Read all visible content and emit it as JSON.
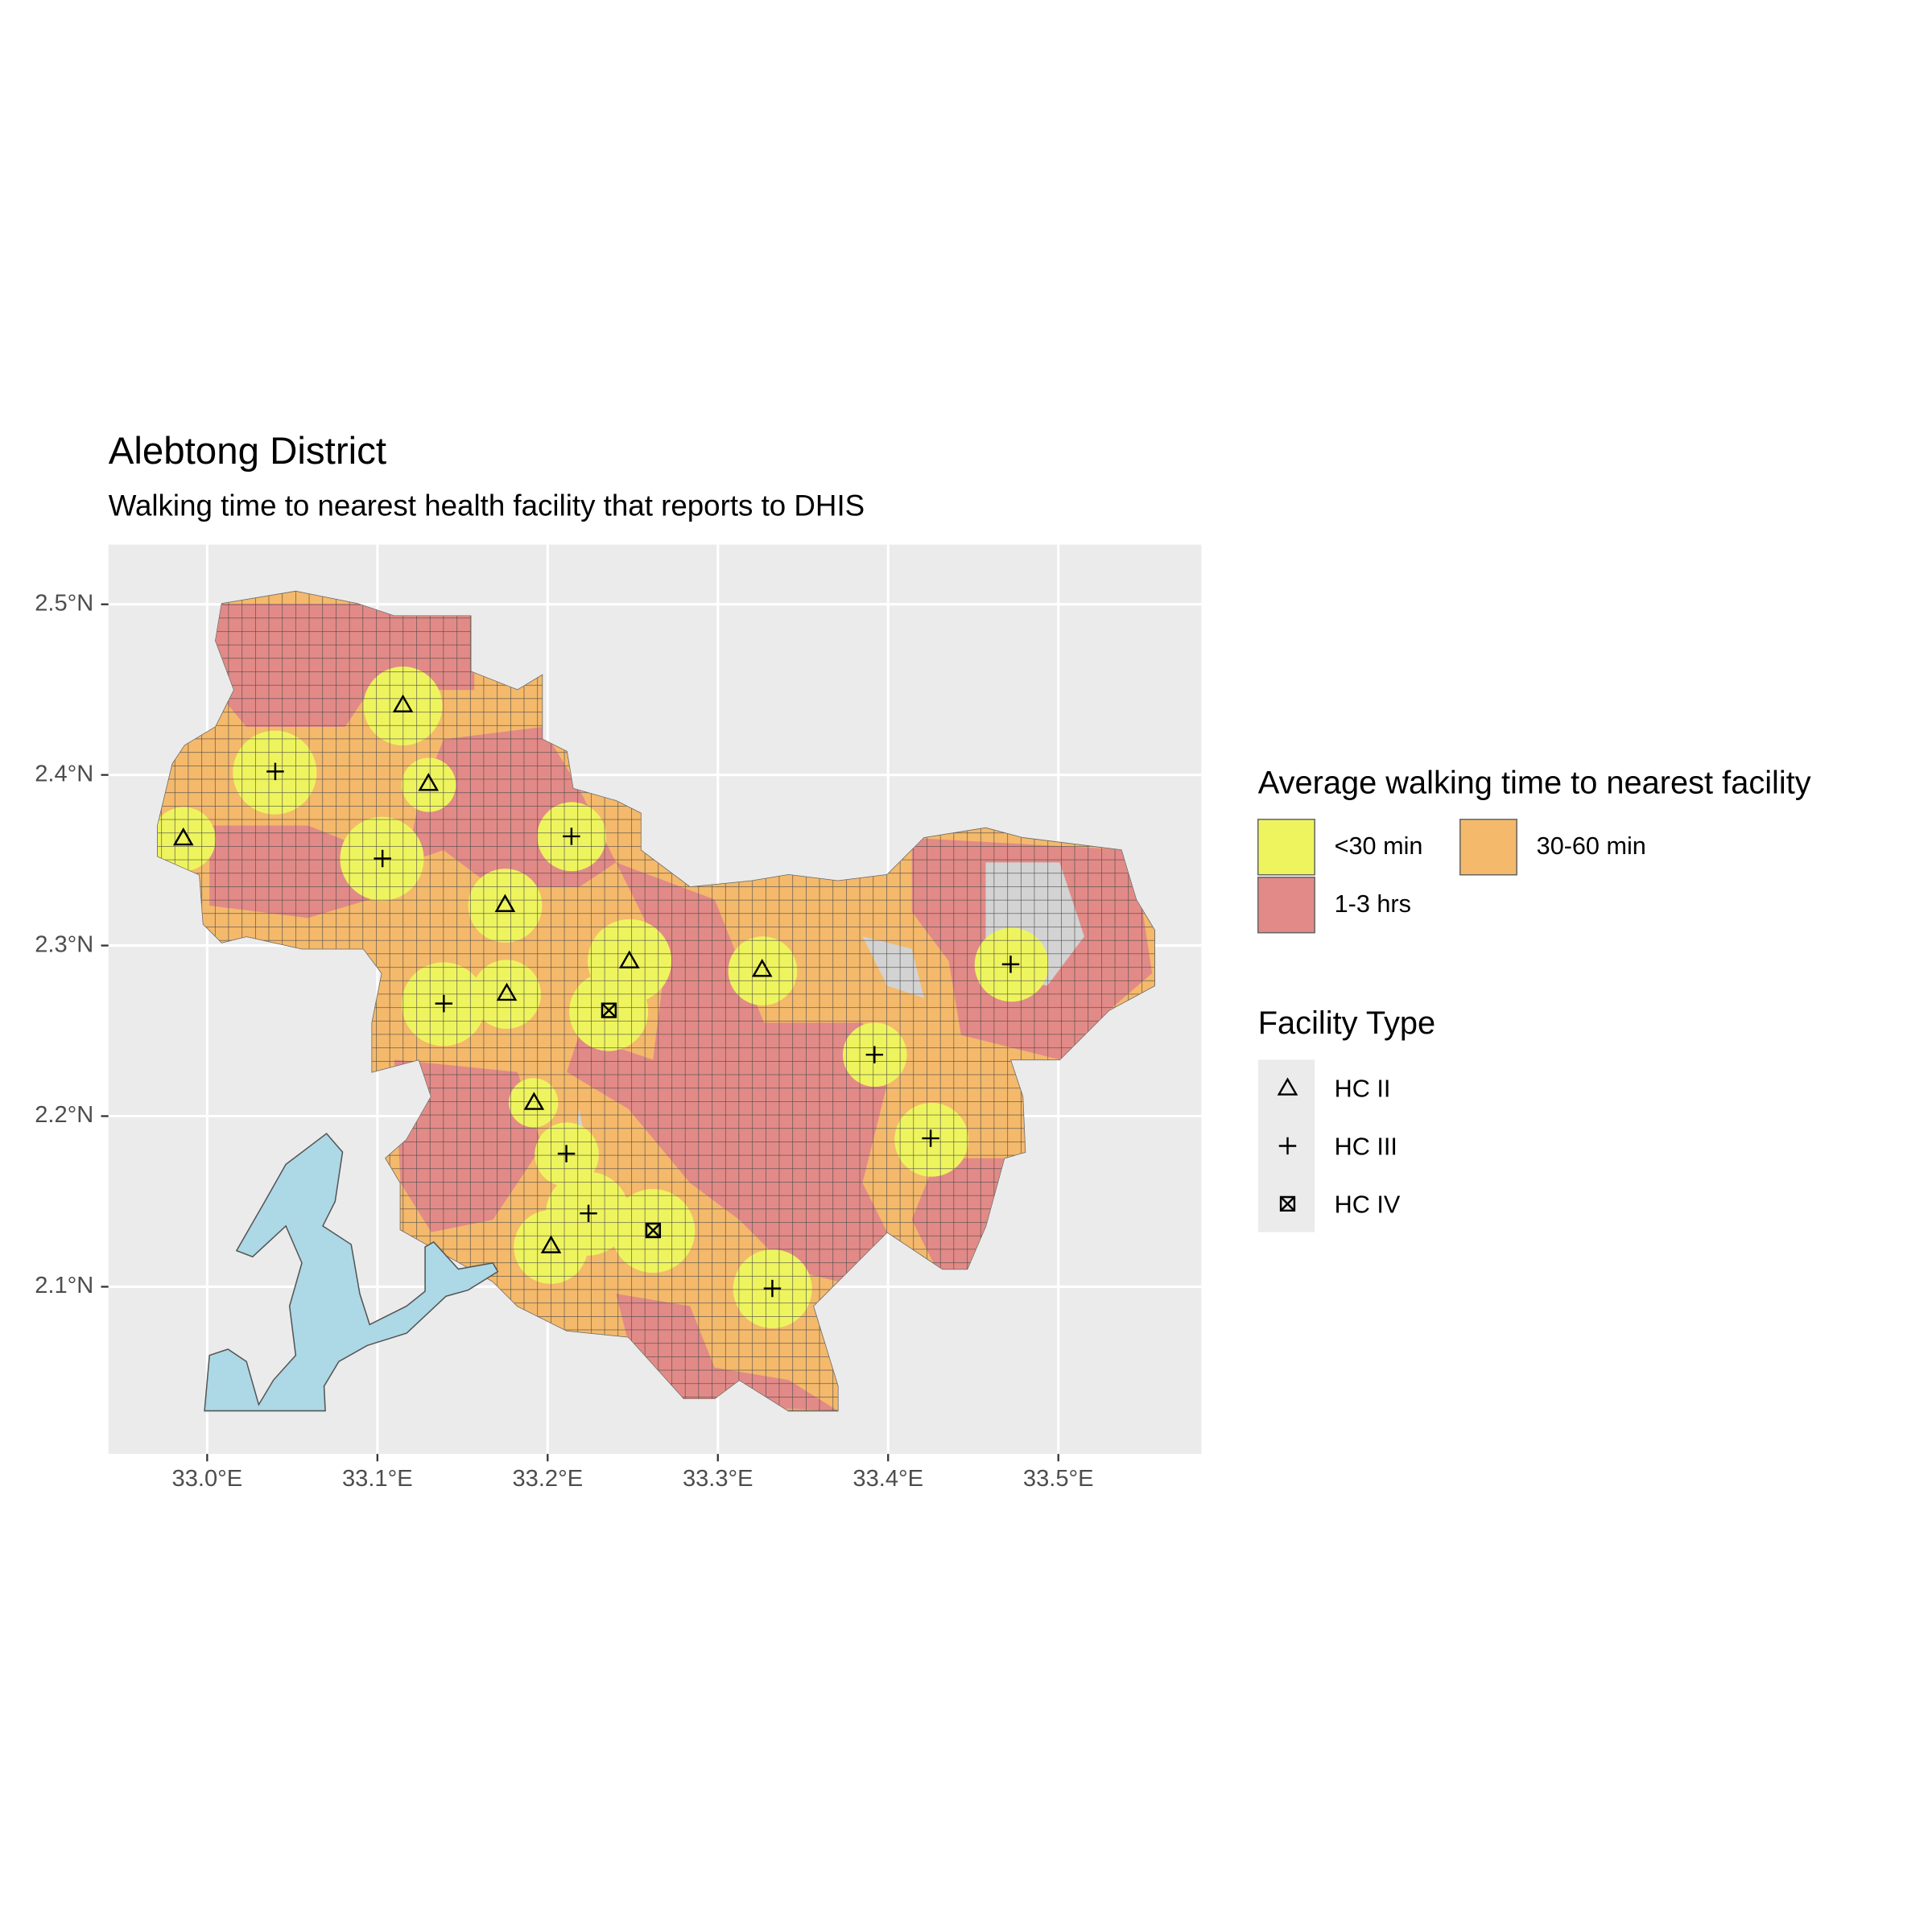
{
  "chart_data": {
    "type": "map",
    "title": "Alebtong District",
    "subtitle": "Walking time to nearest health facility that reports to DHIS",
    "xlim": [
      32.942,
      33.584
    ],
    "ylim": [
      2.002,
      2.535
    ],
    "xticks": [
      {
        "value": 33.0,
        "label": "33.0°E"
      },
      {
        "value": 33.1,
        "label": "33.1°E"
      },
      {
        "value": 33.2,
        "label": "33.2°E"
      },
      {
        "value": 33.3,
        "label": "33.3°E"
      },
      {
        "value": 33.4,
        "label": "33.4°E"
      },
      {
        "value": 33.5,
        "label": "33.5°E"
      }
    ],
    "yticks": [
      {
        "value": 2.1,
        "label": "2.1°N"
      },
      {
        "value": 2.2,
        "label": "2.2°N"
      },
      {
        "value": 2.3,
        "label": "2.3°N"
      },
      {
        "value": 2.4,
        "label": "2.4°N"
      },
      {
        "value": 2.5,
        "label": "2.5°N"
      }
    ],
    "grid": true,
    "fill_legend": {
      "title": "Average walking time to nearest facility",
      "categories": [
        "<30 min",
        "30-60 min",
        "1-3 hrs"
      ],
      "colors": [
        "#eef45e",
        "#f4b96b",
        "#e28a87"
      ]
    },
    "shape_legend_title": "Facility Type",
    "series": [
      {
        "name": "HC II",
        "shape": "triangle",
        "x": [
          32.986,
          33.115,
          33.13,
          33.175,
          33.176,
          33.248,
          33.326,
          33.192,
          33.202
        ],
        "y": [
          2.363,
          2.441,
          2.395,
          2.324,
          2.272,
          2.291,
          2.286,
          2.208,
          2.124
        ]
      },
      {
        "name": "HC III",
        "shape": "plus",
        "x": [
          33.04,
          33.103,
          33.214,
          33.139,
          33.472,
          33.392,
          33.425,
          33.211,
          33.224,
          33.332
        ],
        "y": [
          2.402,
          2.351,
          2.364,
          2.266,
          2.289,
          2.236,
          2.187,
          2.178,
          2.143,
          2.099
        ]
      },
      {
        "name": "HC IV",
        "shape": "boxcross",
        "x": [
          33.236,
          33.262
        ],
        "y": [
          2.262,
          2.133
        ]
      }
    ]
  }
}
